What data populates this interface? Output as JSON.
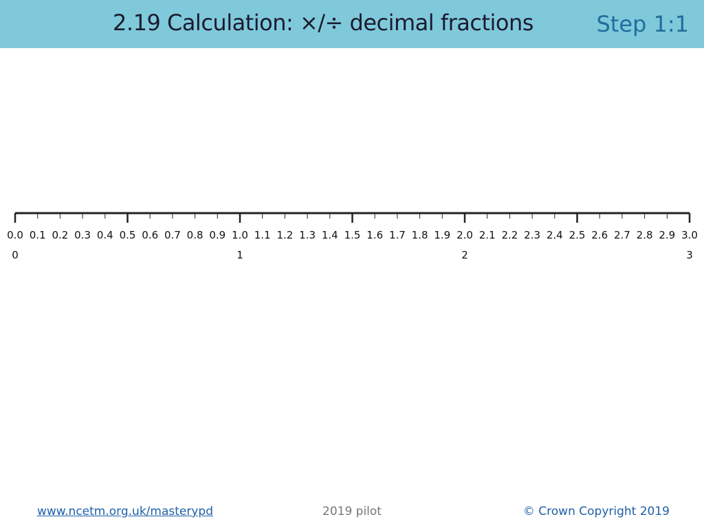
{
  "header": {
    "title": "2.19 Calculation: ×/÷ decimal fractions",
    "step": "Step 1:1"
  },
  "number_line": {
    "decimal_labels": [
      "0.0",
      "0.1",
      "0.2",
      "0.3",
      "0.4",
      "0.5",
      "0.6",
      "0.7",
      "0.8",
      "0.9",
      "1.0",
      "1.1",
      "1.2",
      "1.3",
      "1.4",
      "1.5",
      "1.6",
      "1.7",
      "1.8",
      "1.9",
      "2.0",
      "2.1",
      "2.2",
      "2.3",
      "2.4",
      "2.5",
      "2.6",
      "2.7",
      "2.8",
      "2.9",
      "3.0"
    ],
    "whole_labels": [
      "0",
      "1",
      "2",
      "3"
    ]
  },
  "footer": {
    "link": "www.ncetm.org.uk/masterypd",
    "pilot": "2019 pilot",
    "copyright": "© Crown Copyright 2019"
  }
}
